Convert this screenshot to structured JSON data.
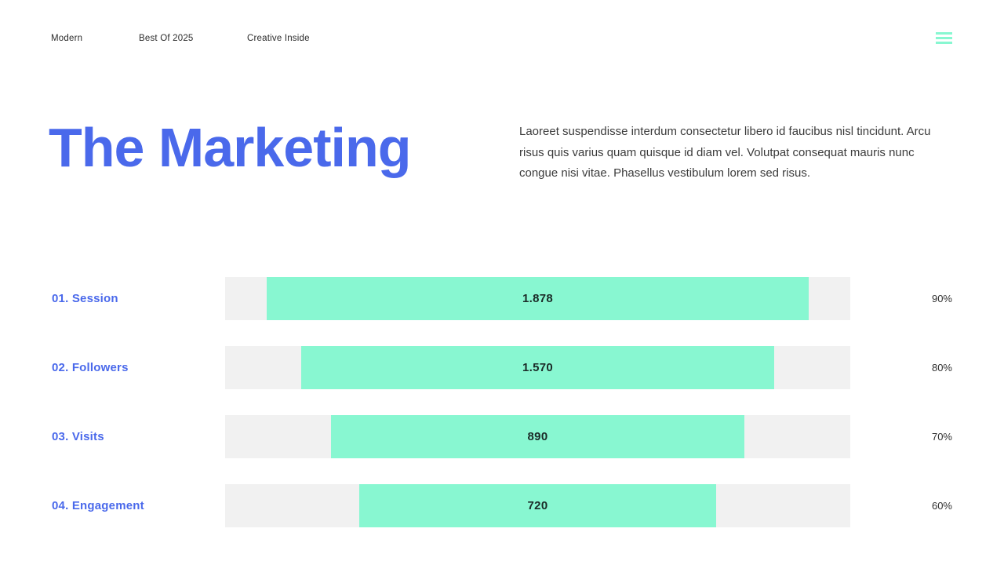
{
  "nav": {
    "items": [
      {
        "label": "Modern"
      },
      {
        "label": "Best Of 2025"
      },
      {
        "label": "Creative Inside"
      }
    ],
    "menu_icon": "hamburger-icon"
  },
  "header": {
    "title": "The Marketing",
    "description": "Laoreet suspendisse interdum consectetur libero id faucibus nisl tincidunt. Arcu risus quis varius quam quisque id diam vel. Volutpat consequat mauris nunc congue nisi vitae. Phasellus vestibulum lorem sed risus."
  },
  "chart_data": {
    "type": "bar",
    "orientation": "horizontal",
    "title": "The Marketing",
    "categories": [
      "01. Session",
      "02. Followers",
      "03. Visits",
      "04. Engagement"
    ],
    "values": [
      "1.878",
      "1.570",
      "890",
      "720"
    ],
    "percent_labels": [
      "90%",
      "80%",
      "70%",
      "60%"
    ],
    "bar_fractions": [
      0.867,
      0.757,
      0.661,
      0.57
    ],
    "bar_alignment": "center",
    "grid": false,
    "legend_position": "none"
  },
  "colors": {
    "accent_blue": "#4a69eb",
    "bar_green": "#88f7d1",
    "track_gray": "#f1f1f1",
    "text_dark": "#3b3b3b"
  }
}
